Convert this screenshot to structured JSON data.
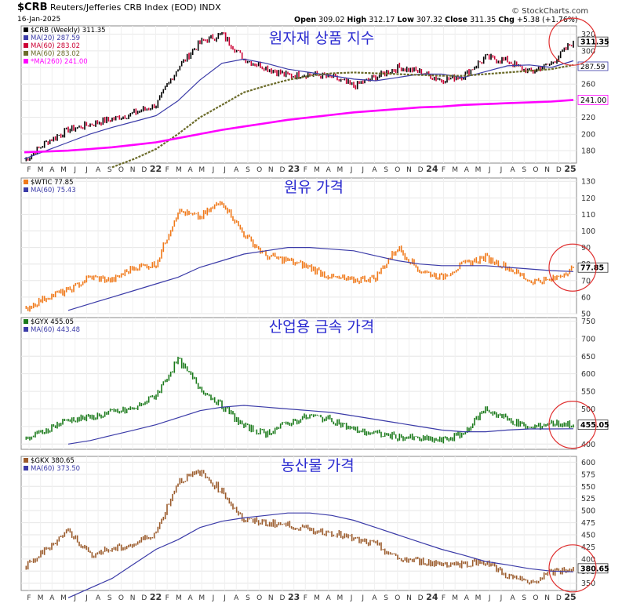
{
  "header": {
    "symbol": "$CRB",
    "name": "Reuters/Jefferies CRB Index (EOD)",
    "exchange": "INDX",
    "date": "16-Jan-2025",
    "open_label": "Open",
    "open": "309.02",
    "high_label": "High",
    "high": "312.17",
    "low_label": "Low",
    "low": "307.32",
    "close_label": "Close",
    "close": "311.35",
    "chg_label": "Chg",
    "chg": "+5.38 (+1.76%)",
    "brand": "© StockCharts.com"
  },
  "colors": {
    "ma_short": "#3b3ba8",
    "ma_long_crb": "#6b6b2a",
    "ma_260": "#ff00ff",
    "crb_up": "#000000",
    "crb_down": "#cc0033",
    "oil": "#f07818",
    "metal": "#1a7a1a",
    "agri": "#9a5a2a",
    "circle": "#e03030",
    "title": "#2a2ad0"
  },
  "chart_data": [
    {
      "type": "line",
      "panel": "crb",
      "annotation": "원자재 상품 지수",
      "legend": [
        "$CRB (Weekly) 311.35",
        "MA(20) 287.59",
        "MA(60) 283.02",
        "MA(60) 283.02",
        "*MA(260) 241.00"
      ],
      "price_tag": "311.35",
      "ma_tag": "287.59",
      "ma260_tag": "241.00",
      "ylim": [
        165,
        330
      ],
      "yticks": [
        180,
        200,
        220,
        240,
        260,
        280,
        300,
        320
      ],
      "x": [
        "2021-01",
        "2021-03",
        "2021-05",
        "2021-07",
        "2021-09",
        "2021-11",
        "2022-01",
        "2022-03",
        "2022-05",
        "2022-06",
        "2022-07",
        "2022-09",
        "2022-11",
        "2023-01",
        "2023-03",
        "2023-05",
        "2023-07",
        "2023-09",
        "2023-11",
        "2024-01",
        "2024-03",
        "2024-05",
        "2024-07",
        "2024-09",
        "2024-11",
        "2025-01"
      ],
      "series": [
        {
          "name": "$CRB",
          "values": [
            168,
            190,
            205,
            212,
            218,
            225,
            235,
            280,
            310,
            320,
            290,
            280,
            270,
            272,
            268,
            258,
            268,
            280,
            275,
            265,
            270,
            292,
            288,
            274,
            285,
            311
          ]
        },
        {
          "name": "MA(20)",
          "values": [
            170,
            180,
            190,
            200,
            208,
            215,
            222,
            240,
            265,
            285,
            290,
            285,
            278,
            274,
            270,
            266,
            264,
            268,
            272,
            272,
            268,
            275,
            282,
            283,
            280,
            288
          ]
        },
        {
          "name": "MA(60)",
          "values": [
            null,
            null,
            null,
            null,
            160,
            170,
            182,
            200,
            220,
            235,
            250,
            258,
            265,
            270,
            273,
            274,
            273,
            272,
            271,
            270,
            270,
            272,
            274,
            276,
            278,
            283
          ]
        },
        {
          "name": "MA(260)",
          "values": [
            178,
            179,
            180,
            182,
            184,
            187,
            190,
            195,
            200,
            205,
            209,
            213,
            217,
            220,
            223,
            226,
            228,
            230,
            232,
            233,
            235,
            236,
            237,
            238,
            239,
            241
          ]
        }
      ]
    },
    {
      "type": "line",
      "panel": "oil",
      "annotation": "원유 가격",
      "legend": [
        "$WTIC 77.85",
        "MA(60) 75.43"
      ],
      "price_tag": "77.85",
      "ylim": [
        50,
        132
      ],
      "yticks": [
        50,
        60,
        70,
        80,
        90,
        100,
        110,
        120,
        130
      ],
      "x": [
        "2021-01",
        "2021-03",
        "2021-05",
        "2021-07",
        "2021-09",
        "2021-11",
        "2022-01",
        "2022-03",
        "2022-05",
        "2022-06",
        "2022-07",
        "2022-09",
        "2022-11",
        "2023-01",
        "2023-03",
        "2023-05",
        "2023-07",
        "2023-09",
        "2023-11",
        "2024-01",
        "2024-03",
        "2024-05",
        "2024-07",
        "2024-09",
        "2024-11",
        "2025-01"
      ],
      "series": [
        {
          "name": "$WTIC",
          "values": [
            52,
            60,
            64,
            72,
            70,
            78,
            80,
            112,
            108,
            118,
            98,
            85,
            82,
            78,
            72,
            70,
            72,
            90,
            76,
            72,
            80,
            84,
            78,
            70,
            70,
            77.85
          ]
        },
        {
          "name": "MA(60)",
          "values": [
            null,
            null,
            52,
            56,
            60,
            64,
            68,
            72,
            78,
            82,
            86,
            88,
            90,
            90,
            89,
            88,
            85,
            82,
            80,
            79,
            79,
            79,
            78,
            77,
            76,
            75.43
          ]
        }
      ]
    },
    {
      "type": "line",
      "panel": "metal",
      "annotation": "산업용 금속 가격",
      "legend": [
        "$GYX 455.05",
        "MA(60) 443.48"
      ],
      "price_tag": "455.05",
      "ylim": [
        385,
        760
      ],
      "yticks": [
        400,
        450,
        500,
        550,
        600,
        650,
        700,
        750
      ],
      "x": [
        "2021-01",
        "2021-03",
        "2021-05",
        "2021-07",
        "2021-09",
        "2021-11",
        "2022-01",
        "2022-03",
        "2022-05",
        "2022-06",
        "2022-07",
        "2022-09",
        "2022-11",
        "2023-01",
        "2023-03",
        "2023-05",
        "2023-07",
        "2023-09",
        "2023-11",
        "2024-01",
        "2024-03",
        "2024-05",
        "2024-07",
        "2024-09",
        "2024-11",
        "2025-01"
      ],
      "series": [
        {
          "name": "$GYX",
          "values": [
            410,
            440,
            470,
            475,
            490,
            500,
            540,
            640,
            560,
            510,
            450,
            430,
            460,
            480,
            470,
            440,
            430,
            420,
            415,
            410,
            430,
            500,
            470,
            445,
            460,
            455.05
          ]
        },
        {
          "name": "MA(60)",
          "values": [
            null,
            null,
            400,
            410,
            425,
            440,
            455,
            475,
            495,
            505,
            510,
            505,
            500,
            495,
            490,
            480,
            470,
            460,
            450,
            440,
            435,
            435,
            440,
            443,
            443,
            443.48
          ]
        }
      ]
    },
    {
      "type": "line",
      "panel": "agri",
      "annotation": "농산물 가격",
      "legend": [
        "$GKX 380.65",
        "MA(60) 373.50"
      ],
      "price_tag": "380.65",
      "ylim": [
        335,
        612
      ],
      "yticks": [
        350,
        375,
        400,
        425,
        450,
        475,
        500,
        525,
        550,
        575,
        600
      ],
      "x": [
        "2021-01",
        "2021-03",
        "2021-05",
        "2021-07",
        "2021-09",
        "2021-11",
        "2022-01",
        "2022-03",
        "2022-05",
        "2022-06",
        "2022-07",
        "2022-09",
        "2022-11",
        "2023-01",
        "2023-03",
        "2023-05",
        "2023-07",
        "2023-09",
        "2023-11",
        "2024-01",
        "2024-03",
        "2024-05",
        "2024-07",
        "2024-09",
        "2024-11",
        "2025-01"
      ],
      "series": [
        {
          "name": "$GKX",
          "values": [
            380,
            420,
            460,
            410,
            420,
            430,
            455,
            560,
            580,
            540,
            480,
            475,
            470,
            460,
            455,
            440,
            430,
            400,
            395,
            390,
            390,
            395,
            365,
            350,
            372,
            380.65
          ]
        },
        {
          "name": "MA(60)",
          "values": [
            null,
            null,
            320,
            340,
            360,
            390,
            420,
            440,
            465,
            478,
            485,
            490,
            495,
            495,
            490,
            480,
            465,
            450,
            435,
            420,
            408,
            395,
            388,
            380,
            375,
            373.5
          ]
        }
      ]
    }
  ],
  "x_axis": {
    "labels": [
      "F",
      "M",
      "A",
      "M",
      "J",
      "J",
      "A",
      "S",
      "O",
      "N",
      "D",
      "22",
      "F",
      "M",
      "A",
      "M",
      "J",
      "J",
      "A",
      "S",
      "O",
      "N",
      "D",
      "23",
      "F",
      "M",
      "A",
      "M",
      "J",
      "J",
      "A",
      "S",
      "O",
      "N",
      "D",
      "24",
      "F",
      "M",
      "A",
      "M",
      "J",
      "J",
      "A",
      "S",
      "O",
      "N",
      "D",
      "25"
    ],
    "year_labels": [
      "22",
      "23",
      "24",
      "25"
    ]
  }
}
